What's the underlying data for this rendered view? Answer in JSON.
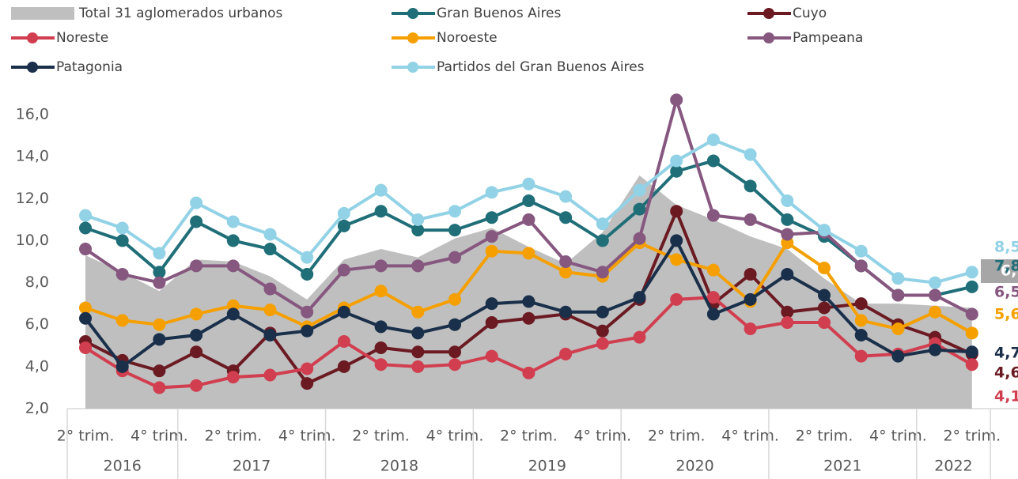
{
  "chart_data": {
    "type": "line",
    "categories": [
      "2° trim.",
      null,
      "4° trim.",
      null,
      "2° trim.",
      null,
      "4° trim.",
      null,
      "2° trim.",
      null,
      "4° trim.",
      null,
      "2° trim.",
      null,
      "4° trim.",
      null,
      "2° trim.",
      null,
      "4° trim.",
      null,
      "2° trim.",
      null,
      "4° trim.",
      null,
      "2° trim."
    ],
    "groups": [
      {
        "label": "2016",
        "count": 3
      },
      {
        "label": "2017",
        "count": 4
      },
      {
        "label": "2018",
        "count": 4
      },
      {
        "label": "2019",
        "count": 4
      },
      {
        "label": "2020",
        "count": 4
      },
      {
        "label": "2021",
        "count": 4
      },
      {
        "label": "2022",
        "count": 2
      }
    ],
    "ylim": [
      2,
      16.9
    ],
    "yticks": [
      {
        "value": 2,
        "label": "2,0"
      },
      {
        "value": 4,
        "label": "4,0"
      },
      {
        "value": 6,
        "label": "6,0"
      },
      {
        "value": 8,
        "label": "8,0"
      },
      {
        "value": 10,
        "label": "10,0"
      },
      {
        "value": 12,
        "label": "12,0"
      },
      {
        "value": 14,
        "label": "14,0"
      },
      {
        "value": 16,
        "label": "16,0"
      }
    ],
    "series": [
      {
        "name": "Total 31 aglomerados urbanos",
        "kind": "area",
        "color": "#bfbfbf",
        "last_label": "6,8",
        "values": [
          9.3,
          8.5,
          7.6,
          9.1,
          9.0,
          8.3,
          7.2,
          9.1,
          9.6,
          9.2,
          10.1,
          10.6,
          9.7,
          8.9,
          10.4,
          13.1,
          11.7,
          11.0,
          10.2,
          9.6,
          8.2,
          7.0,
          7.0,
          6.9,
          6.8
        ]
      },
      {
        "name": "Gran Buenos Aires",
        "color": "#1f6e78",
        "last_label": "7,8",
        "values": [
          10.6,
          10.0,
          8.5,
          10.9,
          10.0,
          9.6,
          8.4,
          10.7,
          11.4,
          10.5,
          10.5,
          11.1,
          11.9,
          11.1,
          10.0,
          11.5,
          13.3,
          13.8,
          12.6,
          11.0,
          10.2,
          8.8,
          7.4,
          7.4,
          7.8
        ]
      },
      {
        "name": "Cuyo",
        "color": "#6b1a22",
        "last_label": "4,6",
        "values": [
          5.2,
          4.3,
          3.8,
          4.7,
          3.8,
          5.6,
          3.2,
          4.0,
          4.9,
          4.7,
          4.7,
          6.1,
          6.3,
          6.5,
          5.7,
          7.2,
          11.4,
          7.0,
          8.4,
          6.6,
          6.8,
          7.0,
          6.0,
          5.4,
          4.6
        ]
      },
      {
        "name": "Noreste",
        "color": "#d13e4f",
        "last_label": "4,1",
        "values": [
          4.9,
          3.8,
          3.0,
          3.1,
          3.5,
          3.6,
          3.9,
          5.2,
          4.1,
          4.0,
          4.1,
          4.5,
          3.7,
          4.6,
          5.1,
          5.4,
          7.2,
          7.3,
          5.8,
          6.1,
          6.1,
          4.5,
          4.6,
          5.1,
          4.1
        ]
      },
      {
        "name": "Noroeste",
        "color": "#f5a000",
        "last_label": "5,6",
        "values": [
          6.8,
          6.2,
          6.0,
          6.5,
          6.9,
          6.7,
          5.9,
          6.8,
          7.6,
          6.6,
          7.2,
          9.5,
          9.4,
          8.5,
          8.3,
          9.9,
          9.1,
          8.6,
          7.1,
          9.9,
          8.7,
          6.2,
          5.8,
          6.6,
          5.6
        ]
      },
      {
        "name": "Pampeana",
        "color": "#86577f",
        "last_label": "6,5",
        "values": [
          9.6,
          8.4,
          8.0,
          8.8,
          8.8,
          7.7,
          6.6,
          8.6,
          8.8,
          8.8,
          9.2,
          10.2,
          11.0,
          9.0,
          8.5,
          10.1,
          16.7,
          11.2,
          11.0,
          10.3,
          10.4,
          8.8,
          7.4,
          7.4,
          6.5
        ]
      },
      {
        "name": "Patagonia",
        "color": "#1a2f4a",
        "last_label": "4,7",
        "values": [
          6.3,
          4.0,
          5.3,
          5.5,
          6.5,
          5.5,
          5.7,
          6.6,
          5.9,
          5.6,
          6.0,
          7.0,
          7.1,
          6.6,
          6.6,
          7.3,
          10.0,
          6.5,
          7.2,
          8.4,
          7.4,
          5.5,
          4.5,
          4.8,
          4.7
        ]
      },
      {
        "name": "Partidos del Gran Buenos Aires",
        "color": "#92d2e6",
        "last_label": "8,5",
        "values": [
          11.2,
          10.6,
          9.4,
          11.8,
          10.9,
          10.3,
          9.2,
          11.3,
          12.4,
          11.0,
          11.4,
          12.3,
          12.7,
          12.1,
          10.8,
          12.4,
          13.8,
          14.8,
          14.1,
          11.9,
          10.5,
          9.5,
          8.2,
          8.0,
          8.5
        ]
      }
    ]
  }
}
